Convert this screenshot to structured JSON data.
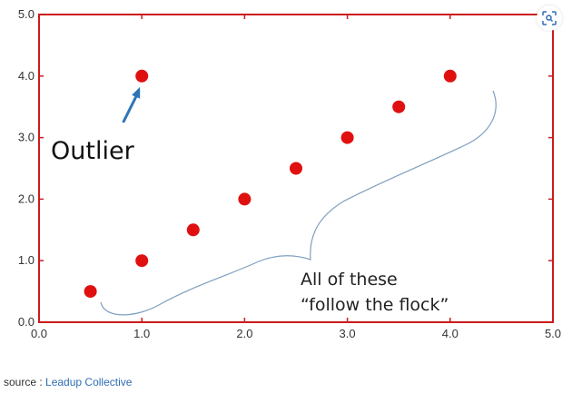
{
  "chart_data": {
    "type": "scatter",
    "title": "",
    "xlabel": "",
    "ylabel": "",
    "xlim": [
      0,
      5
    ],
    "ylim": [
      0,
      5
    ],
    "x_ticks": [
      "0.0",
      "1.0",
      "2.0",
      "3.0",
      "4.0",
      "5.0"
    ],
    "y_ticks": [
      "0.0",
      "1.0",
      "2.0",
      "3.0",
      "4.0",
      "5.0"
    ],
    "grid": false,
    "series": [
      {
        "name": "points",
        "color": "#e01010",
        "points": [
          {
            "x": 0.5,
            "y": 0.5
          },
          {
            "x": 1.0,
            "y": 1.0
          },
          {
            "x": 1.5,
            "y": 1.5
          },
          {
            "x": 2.0,
            "y": 2.0
          },
          {
            "x": 2.5,
            "y": 2.5
          },
          {
            "x": 3.0,
            "y": 3.0
          },
          {
            "x": 3.5,
            "y": 3.5
          },
          {
            "x": 4.0,
            "y": 4.0
          },
          {
            "x": 1.0,
            "y": 4.0
          }
        ]
      }
    ],
    "annotations": {
      "outlier_label": "Outlier",
      "flock_line_1": "All of these",
      "flock_line_2": "“follow the flock”"
    }
  },
  "colors": {
    "frame": "#cc1b1b",
    "marker": "#e01010",
    "arrow": "#2e75b6",
    "brace": "#7f9fbf"
  },
  "source": {
    "prefix": "source : ",
    "link_text": "Leadup Collective"
  },
  "toolbar": {
    "lens_icon": "visual-search-icon"
  }
}
